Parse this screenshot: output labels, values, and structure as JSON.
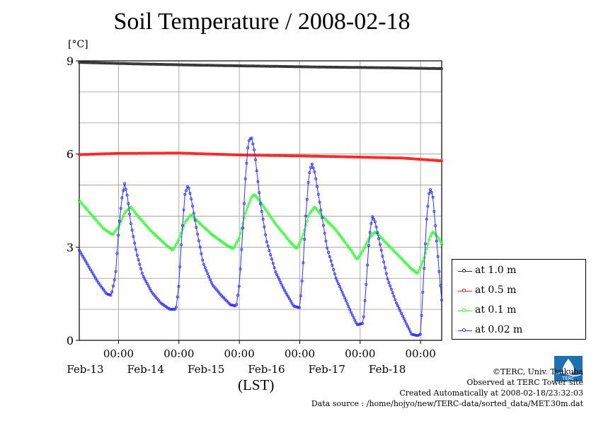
{
  "chart_data": {
    "type": "line",
    "title": "Soil Temperature / 2008-02-18",
    "ylabel": "[°C]",
    "xlabel": "(LST)",
    "ylim": [
      0,
      9
    ],
    "yticks": [
      "0",
      "3",
      "6",
      "9"
    ],
    "xlim": [
      -0.65,
      5.35
    ],
    "xticks": [
      {
        "x": 0,
        "time": "00:00",
        "date": "Feb-13"
      },
      {
        "x": 1,
        "time": "00:00",
        "date": "Feb-14"
      },
      {
        "x": 2,
        "time": "00:00",
        "date": "Feb-15"
      },
      {
        "x": 3,
        "time": "00:00",
        "date": "Feb-16"
      },
      {
        "x": 4,
        "time": "00:00",
        "date": "Feb-17"
      },
      {
        "x": 5,
        "time": "00:00",
        "date": "Feb-18"
      }
    ],
    "grid": true,
    "legend_position": "right",
    "series": [
      {
        "name": "at 1.0 m",
        "color": "#303030",
        "points": [
          [
            -0.65,
            8.95
          ],
          [
            0.35,
            8.9
          ],
          [
            1.35,
            8.86
          ],
          [
            2.35,
            8.83
          ],
          [
            3.35,
            8.8
          ],
          [
            4.35,
            8.78
          ],
          [
            5.35,
            8.75
          ]
        ]
      },
      {
        "name": "at 0.5 m",
        "color": "#ff2020",
        "points": [
          [
            -0.65,
            5.98
          ],
          [
            0.0,
            6.02
          ],
          [
            1.0,
            6.03
          ],
          [
            2.0,
            5.97
          ],
          [
            3.0,
            5.94
          ],
          [
            4.0,
            5.9
          ],
          [
            4.7,
            5.87
          ],
          [
            5.35,
            5.78
          ]
        ]
      },
      {
        "name": "at 0.1 m",
        "color": "#30ff30",
        "points": [
          [
            -0.65,
            4.5
          ],
          [
            -0.45,
            4.05
          ],
          [
            -0.25,
            3.6
          ],
          [
            -0.1,
            3.4
          ],
          [
            0.0,
            3.65
          ],
          [
            0.1,
            4.1
          ],
          [
            0.2,
            4.3
          ],
          [
            0.3,
            4.05
          ],
          [
            0.55,
            3.5
          ],
          [
            0.8,
            3.05
          ],
          [
            0.9,
            2.9
          ],
          [
            1.0,
            3.25
          ],
          [
            1.1,
            3.8
          ],
          [
            1.2,
            4.05
          ],
          [
            1.3,
            3.85
          ],
          [
            1.55,
            3.4
          ],
          [
            1.8,
            3.05
          ],
          [
            1.9,
            2.95
          ],
          [
            2.0,
            3.3
          ],
          [
            2.1,
            4.1
          ],
          [
            2.2,
            4.6
          ],
          [
            2.25,
            4.7
          ],
          [
            2.35,
            4.45
          ],
          [
            2.6,
            3.75
          ],
          [
            2.85,
            3.15
          ],
          [
            2.95,
            2.95
          ],
          [
            3.05,
            3.35
          ],
          [
            3.15,
            4.05
          ],
          [
            3.25,
            4.3
          ],
          [
            3.35,
            4.05
          ],
          [
            3.6,
            3.55
          ],
          [
            3.85,
            2.9
          ],
          [
            3.95,
            2.6
          ],
          [
            4.05,
            2.9
          ],
          [
            4.15,
            3.3
          ],
          [
            4.25,
            3.5
          ],
          [
            4.35,
            3.3
          ],
          [
            4.6,
            2.8
          ],
          [
            4.85,
            2.3
          ],
          [
            4.95,
            2.15
          ],
          [
            5.05,
            2.6
          ],
          [
            5.15,
            3.3
          ],
          [
            5.2,
            3.5
          ],
          [
            5.3,
            3.3
          ],
          [
            5.35,
            3.1
          ]
        ]
      },
      {
        "name": "at 0.02 m",
        "color": "#3030ff",
        "points": [
          [
            -0.65,
            2.9
          ],
          [
            -0.5,
            2.4
          ],
          [
            -0.35,
            1.9
          ],
          [
            -0.2,
            1.5
          ],
          [
            -0.12,
            1.45
          ],
          [
            -0.05,
            2.1
          ],
          [
            0.0,
            3.5
          ],
          [
            0.05,
            4.5
          ],
          [
            0.1,
            5.05
          ],
          [
            0.15,
            4.6
          ],
          [
            0.2,
            3.8
          ],
          [
            0.3,
            2.8
          ],
          [
            0.4,
            2.1
          ],
          [
            0.55,
            1.55
          ],
          [
            0.7,
            1.2
          ],
          [
            0.85,
            1.0
          ],
          [
            0.95,
            1.0
          ],
          [
            1.0,
            1.8
          ],
          [
            1.05,
            3.5
          ],
          [
            1.1,
            4.7
          ],
          [
            1.15,
            5.0
          ],
          [
            1.2,
            4.6
          ],
          [
            1.3,
            3.5
          ],
          [
            1.4,
            2.5
          ],
          [
            1.55,
            1.8
          ],
          [
            1.7,
            1.45
          ],
          [
            1.85,
            1.15
          ],
          [
            1.95,
            1.1
          ],
          [
            2.0,
            1.8
          ],
          [
            2.05,
            3.3
          ],
          [
            2.1,
            5.2
          ],
          [
            2.15,
            6.4
          ],
          [
            2.2,
            6.55
          ],
          [
            2.25,
            6.1
          ],
          [
            2.35,
            4.4
          ],
          [
            2.45,
            3.2
          ],
          [
            2.6,
            2.2
          ],
          [
            2.75,
            1.6
          ],
          [
            2.9,
            1.1
          ],
          [
            3.0,
            1.05
          ],
          [
            3.05,
            2.2
          ],
          [
            3.1,
            4.0
          ],
          [
            3.15,
            5.3
          ],
          [
            3.2,
            5.7
          ],
          [
            3.25,
            5.4
          ],
          [
            3.35,
            4.2
          ],
          [
            3.45,
            3.0
          ],
          [
            3.6,
            2.0
          ],
          [
            3.75,
            1.35
          ],
          [
            3.85,
            0.9
          ],
          [
            3.95,
            0.5
          ],
          [
            4.05,
            0.55
          ],
          [
            4.1,
            1.8
          ],
          [
            4.15,
            3.3
          ],
          [
            4.2,
            4.0
          ],
          [
            4.25,
            3.8
          ],
          [
            4.35,
            2.9
          ],
          [
            4.45,
            2.0
          ],
          [
            4.6,
            1.2
          ],
          [
            4.75,
            0.6
          ],
          [
            4.85,
            0.2
          ],
          [
            4.95,
            0.15
          ],
          [
            5.0,
            0.2
          ],
          [
            5.05,
            2.0
          ],
          [
            5.1,
            3.9
          ],
          [
            5.15,
            4.9
          ],
          [
            5.2,
            4.7
          ],
          [
            5.25,
            3.6
          ],
          [
            5.3,
            2.4
          ],
          [
            5.35,
            1.3
          ]
        ]
      }
    ]
  },
  "credits": {
    "copyright": "©TERC, Univ. Tsukuba",
    "observed": "Observed at TERC Tower site",
    "created": "Created Automatically at 2008-02-18/23:32:03",
    "source": "Data source : /home/hojyo/new/TERC-data/sorted_data/MET.30m.dat"
  },
  "logo": {
    "text": "TERC",
    "color": "#1f6fb3"
  }
}
